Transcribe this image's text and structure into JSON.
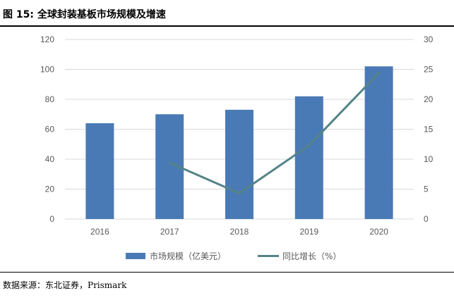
{
  "figure": {
    "title": "图 15: 全球封装基板市场规模及增速",
    "source": "数据来源：东北证券，Prismark"
  },
  "chart_data": {
    "type": "bar",
    "categories": [
      "2016",
      "2017",
      "2018",
      "2019",
      "2020"
    ],
    "series": [
      {
        "name": "市场规模（亿美元）",
        "type": "bar",
        "axis": "left",
        "values": [
          64,
          70,
          73,
          82,
          102
        ]
      },
      {
        "name": "同比增长（%）",
        "type": "line",
        "axis": "right",
        "values": [
          null,
          9.4,
          4.3,
          12.3,
          24.4
        ]
      }
    ],
    "y_left": {
      "min": 0,
      "max": 120,
      "ticks": [
        0,
        20,
        40,
        60,
        80,
        100,
        120
      ]
    },
    "y_right": {
      "min": 0,
      "max": 30,
      "ticks": [
        0,
        5,
        10,
        15,
        20,
        25,
        30
      ]
    },
    "grid": true,
    "legend_position": "bottom",
    "colors": {
      "bar": "#4a7ab5",
      "line": "#538388",
      "grid": "#d9d9d9",
      "text": "#595959"
    }
  }
}
